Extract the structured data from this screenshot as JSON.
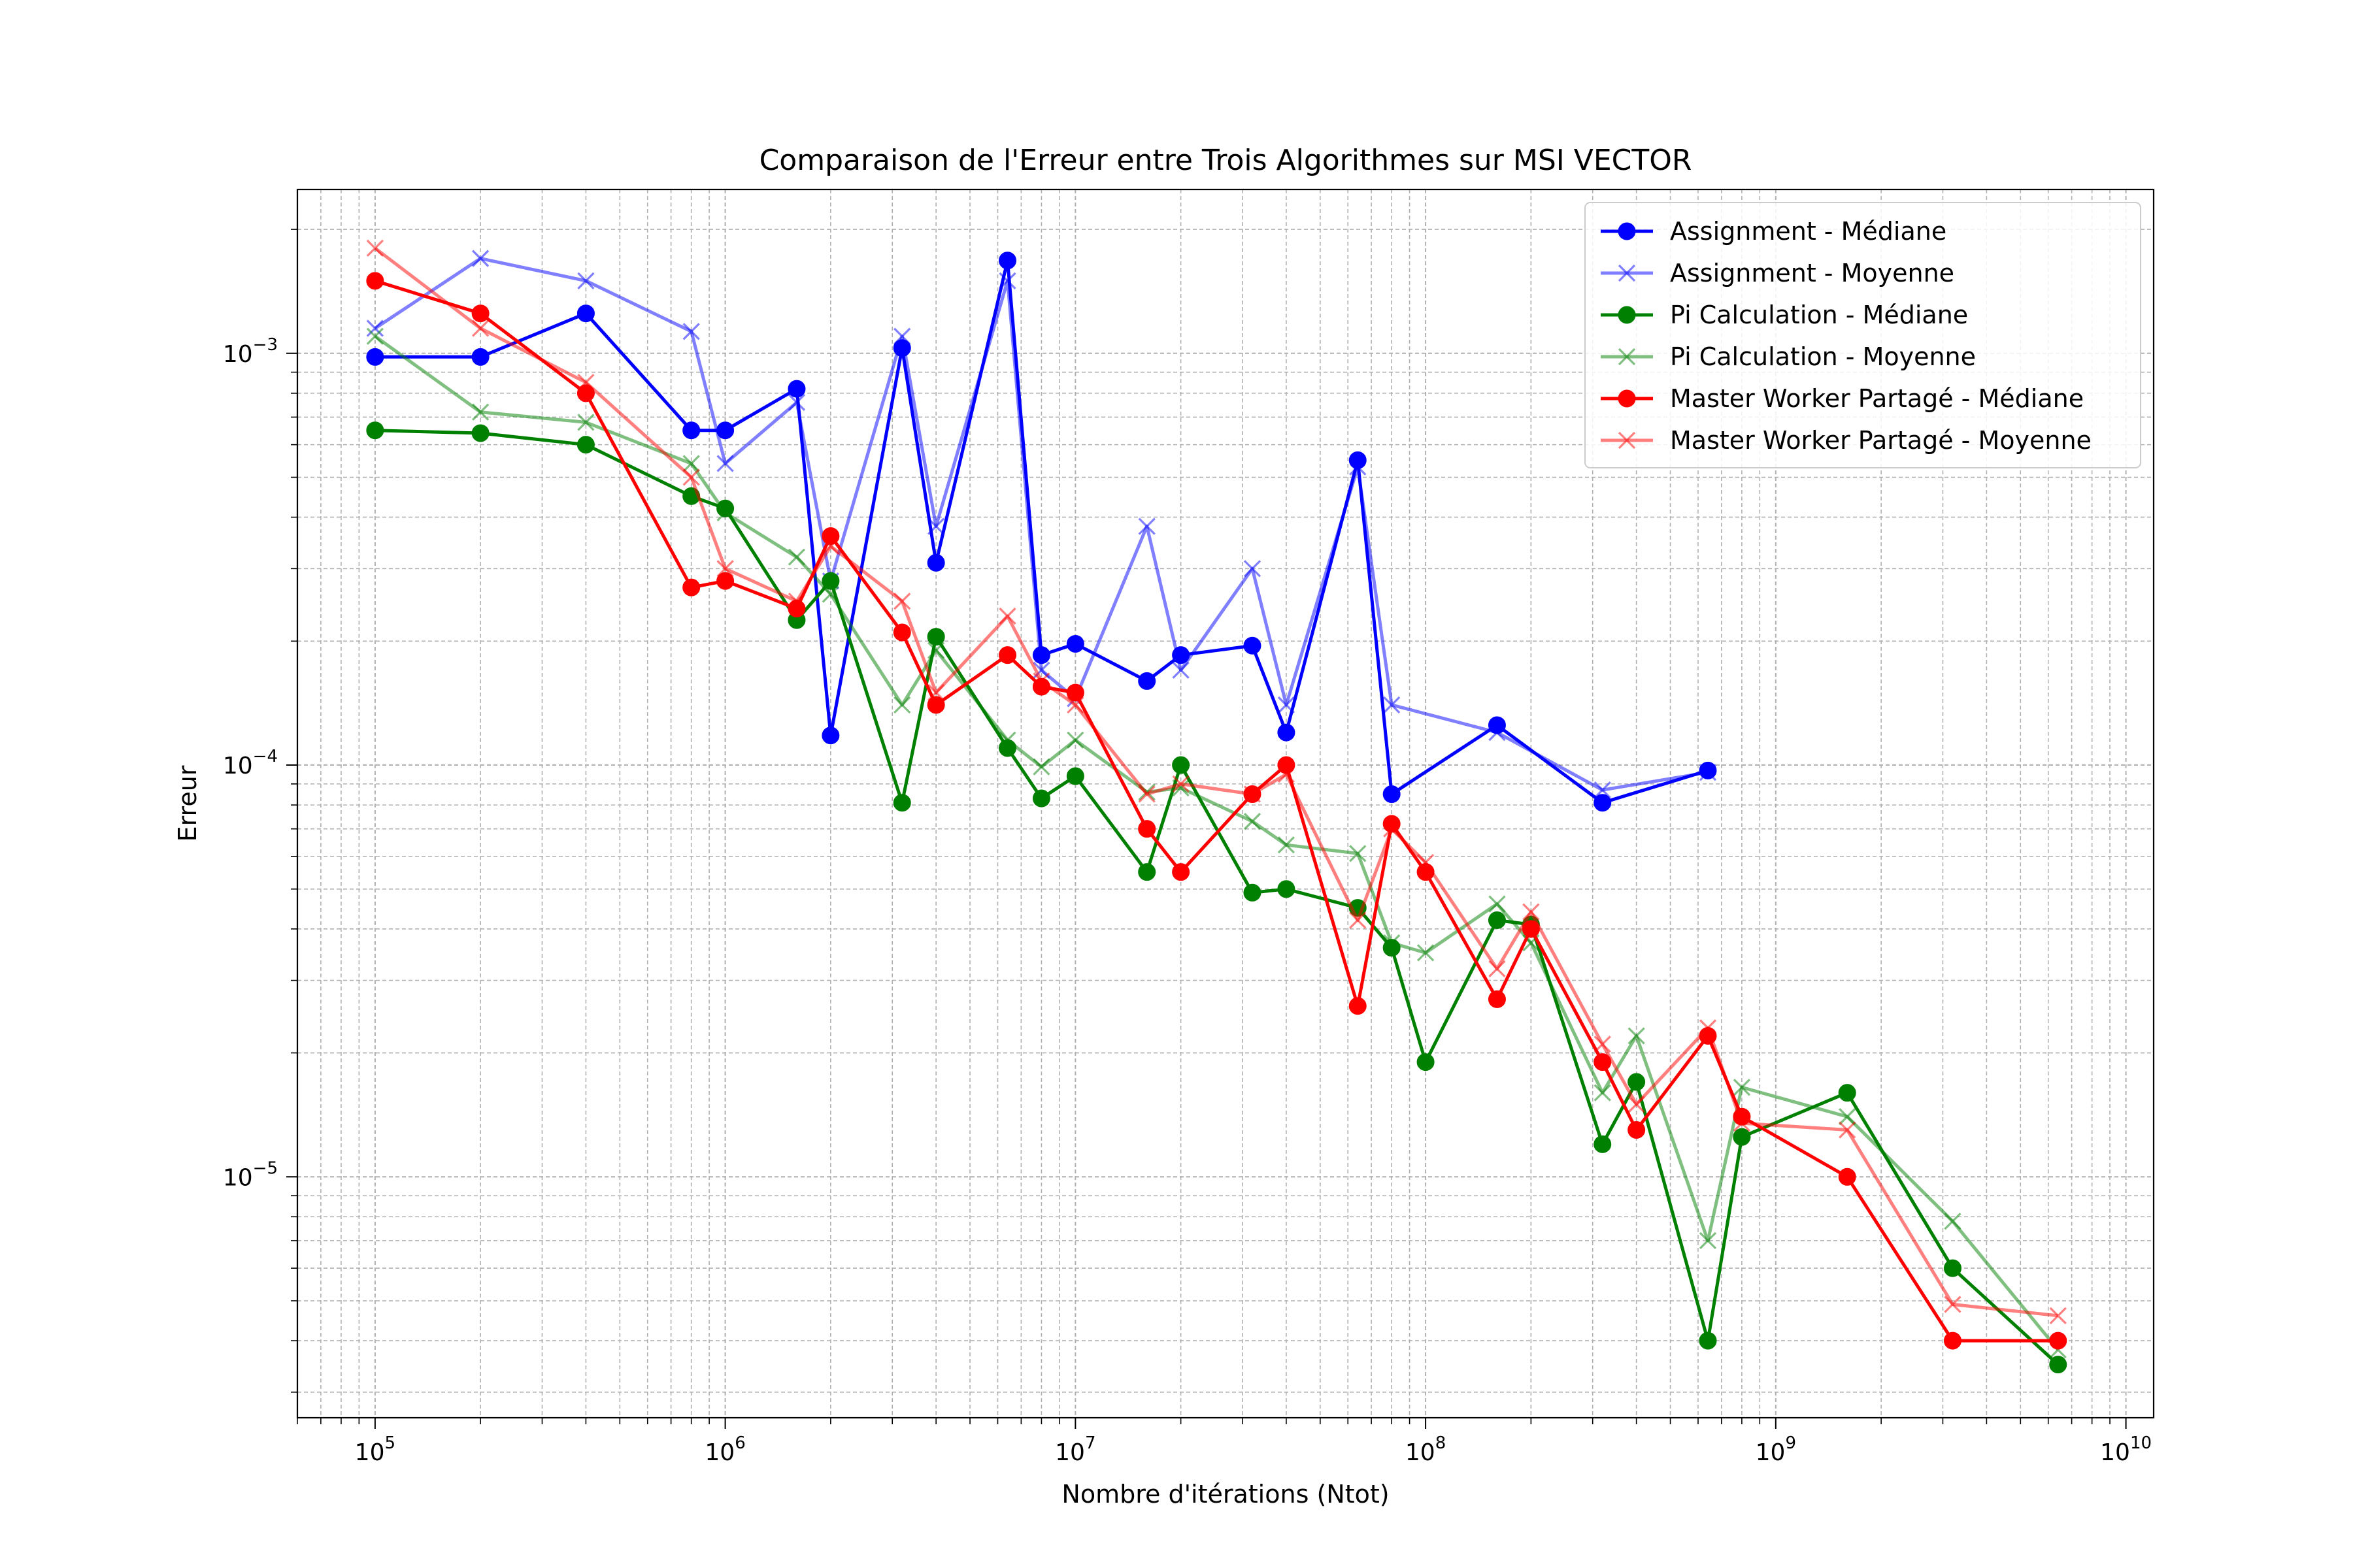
{
  "chart_data": {
    "type": "line",
    "title": "Comparaison de l'Erreur entre Trois Algorithmes sur MSI VECTOR",
    "xlabel": "Nombre d'itérations (Ntot)",
    "ylabel": "Erreur",
    "xscale": "log",
    "yscale": "log",
    "xlim": [
      60000,
      12000000000
    ],
    "ylim": [
      2.6e-06,
      0.0025
    ],
    "grid": "on",
    "legend_position": "top-right",
    "x_ticks": [
      {
        "base": "10",
        "exp": "5",
        "value": 100000
      },
      {
        "base": "10",
        "exp": "6",
        "value": 1000000
      },
      {
        "base": "10",
        "exp": "7",
        "value": 10000000
      },
      {
        "base": "10",
        "exp": "8",
        "value": 100000000
      },
      {
        "base": "10",
        "exp": "9",
        "value": 1000000000
      },
      {
        "base": "10",
        "exp": "10",
        "value": 10000000000
      }
    ],
    "y_ticks": [
      {
        "base": "10",
        "exp": "−5",
        "value": 1e-05
      },
      {
        "base": "10",
        "exp": "−4",
        "value": 0.0001
      },
      {
        "base": "10",
        "exp": "−3",
        "value": 0.001
      }
    ],
    "series": [
      {
        "name": "Assignment - Médiane",
        "color": "#0000ff",
        "alpha": 1.0,
        "marker": "circle",
        "x": [
          100000,
          200000,
          400000,
          800000,
          1000000,
          1600000,
          2000000,
          3200000,
          4000000,
          6400000,
          8000000,
          10000000,
          16000000,
          20000000,
          32000000,
          40000000,
          64000000,
          80000000,
          160000000,
          320000000,
          640000000
        ],
        "y": [
          0.00098,
          0.00098,
          0.00125,
          0.00065,
          0.00065,
          0.00082,
          0.000118,
          0.00103,
          0.00031,
          0.00168,
          0.000185,
          0.000197,
          0.00016,
          0.000185,
          0.000195,
          0.00012,
          0.00055,
          8.5e-05,
          0.000125,
          8.1e-05,
          9.7e-05
        ]
      },
      {
        "name": "Assignment - Moyenne",
        "color": "#0000ff",
        "alpha": 0.5,
        "marker": "x",
        "x": [
          100000,
          200000,
          400000,
          800000,
          1000000,
          1600000,
          2000000,
          3200000,
          4000000,
          6400000,
          8000000,
          10000000,
          16000000,
          20000000,
          32000000,
          40000000,
          64000000,
          80000000,
          160000000,
          320000000,
          640000000
        ],
        "y": [
          0.00115,
          0.0017,
          0.0015,
          0.00113,
          0.00054,
          0.00076,
          0.00028,
          0.0011,
          0.00038,
          0.0015,
          0.00017,
          0.000145,
          0.00038,
          0.00017,
          0.0003,
          0.00014,
          0.00053,
          0.00014,
          0.00012,
          8.7e-05,
          9.6e-05
        ]
      },
      {
        "name": "Pi Calculation - Médiane",
        "color": "#008000",
        "alpha": 1.0,
        "marker": "circle",
        "x": [
          100000,
          200000,
          400000,
          800000,
          1000000,
          1600000,
          2000000,
          3200000,
          4000000,
          6400000,
          8000000,
          10000000,
          16000000,
          20000000,
          32000000,
          40000000,
          64000000,
          80000000,
          100000000,
          160000000,
          200000000,
          320000000,
          400000000,
          640000000,
          800000000,
          1600000000,
          3200000000,
          6400000000
        ],
        "y": [
          0.00065,
          0.00064,
          0.0006,
          0.00045,
          0.00042,
          0.000225,
          0.00028,
          8.1e-05,
          0.000205,
          0.00011,
          8.3e-05,
          9.4e-05,
          5.5e-05,
          0.0001,
          4.9e-05,
          5e-05,
          4.5e-05,
          3.6e-05,
          1.9e-05,
          4.2e-05,
          4.1e-05,
          1.2e-05,
          1.7e-05,
          4e-06,
          1.25e-05,
          1.6e-05,
          6e-06,
          3.5e-06
        ]
      },
      {
        "name": "Pi Calculation - Moyenne",
        "color": "#008000",
        "alpha": 0.5,
        "marker": "x",
        "x": [
          100000,
          200000,
          400000,
          800000,
          1000000,
          1600000,
          2000000,
          3200000,
          4000000,
          6400000,
          8000000,
          10000000,
          16000000,
          20000000,
          32000000,
          40000000,
          64000000,
          80000000,
          100000000,
          160000000,
          200000000,
          320000000,
          400000000,
          640000000,
          800000000,
          1600000000,
          3200000000,
          6400000000
        ],
        "y": [
          0.0011,
          0.00072,
          0.00068,
          0.00054,
          0.00041,
          0.00032,
          0.00026,
          0.00014,
          0.00019,
          0.000115,
          9.9e-05,
          0.000115,
          8.6e-05,
          8.8e-05,
          7.3e-05,
          6.4e-05,
          6.1e-05,
          3.7e-05,
          3.5e-05,
          4.6e-05,
          3.7e-05,
          1.6e-05,
          2.2e-05,
          7e-06,
          1.65e-05,
          1.4e-05,
          7.8e-06,
          3.8e-06
        ]
      },
      {
        "name": "Master Worker Partagé - Médiane",
        "color": "#ff0000",
        "alpha": 1.0,
        "marker": "circle",
        "x": [
          100000,
          200000,
          400000,
          800000,
          1000000,
          1600000,
          2000000,
          3200000,
          4000000,
          6400000,
          8000000,
          10000000,
          16000000,
          20000000,
          32000000,
          40000000,
          64000000,
          80000000,
          100000000,
          160000000,
          200000000,
          320000000,
          400000000,
          640000000,
          800000000,
          1600000000,
          3200000000,
          6400000000
        ],
        "y": [
          0.0015,
          0.00125,
          0.0008,
          0.00027,
          0.00028,
          0.00024,
          0.00036,
          0.00021,
          0.00014,
          0.000185,
          0.000155,
          0.00015,
          7e-05,
          5.5e-05,
          8.5e-05,
          0.0001,
          2.6e-05,
          7.2e-05,
          5.5e-05,
          2.7e-05,
          4e-05,
          1.9e-05,
          1.3e-05,
          2.2e-05,
          1.4e-05,
          1e-05,
          4e-06,
          4e-06
        ]
      },
      {
        "name": "Master Worker Partagé - Moyenne",
        "color": "#ff0000",
        "alpha": 0.5,
        "marker": "x",
        "x": [
          100000,
          200000,
          400000,
          800000,
          1000000,
          1600000,
          2000000,
          3200000,
          4000000,
          6400000,
          8000000,
          10000000,
          16000000,
          20000000,
          32000000,
          40000000,
          64000000,
          80000000,
          100000000,
          160000000,
          200000000,
          320000000,
          400000000,
          640000000,
          800000000,
          1600000000,
          3200000000,
          6400000000
        ],
        "y": [
          0.0018,
          0.00115,
          0.00085,
          0.0005,
          0.0003,
          0.00025,
          0.00034,
          0.00025,
          0.00015,
          0.00023,
          0.00016,
          0.00014,
          8.5e-05,
          9e-05,
          8.5e-05,
          9.5e-05,
          4.2e-05,
          7e-05,
          5.8e-05,
          3.2e-05,
          4.4e-05,
          2.1e-05,
          1.5e-05,
          2.3e-05,
          1.35e-05,
          1.3e-05,
          4.9e-06,
          4.6e-06
        ]
      }
    ]
  }
}
